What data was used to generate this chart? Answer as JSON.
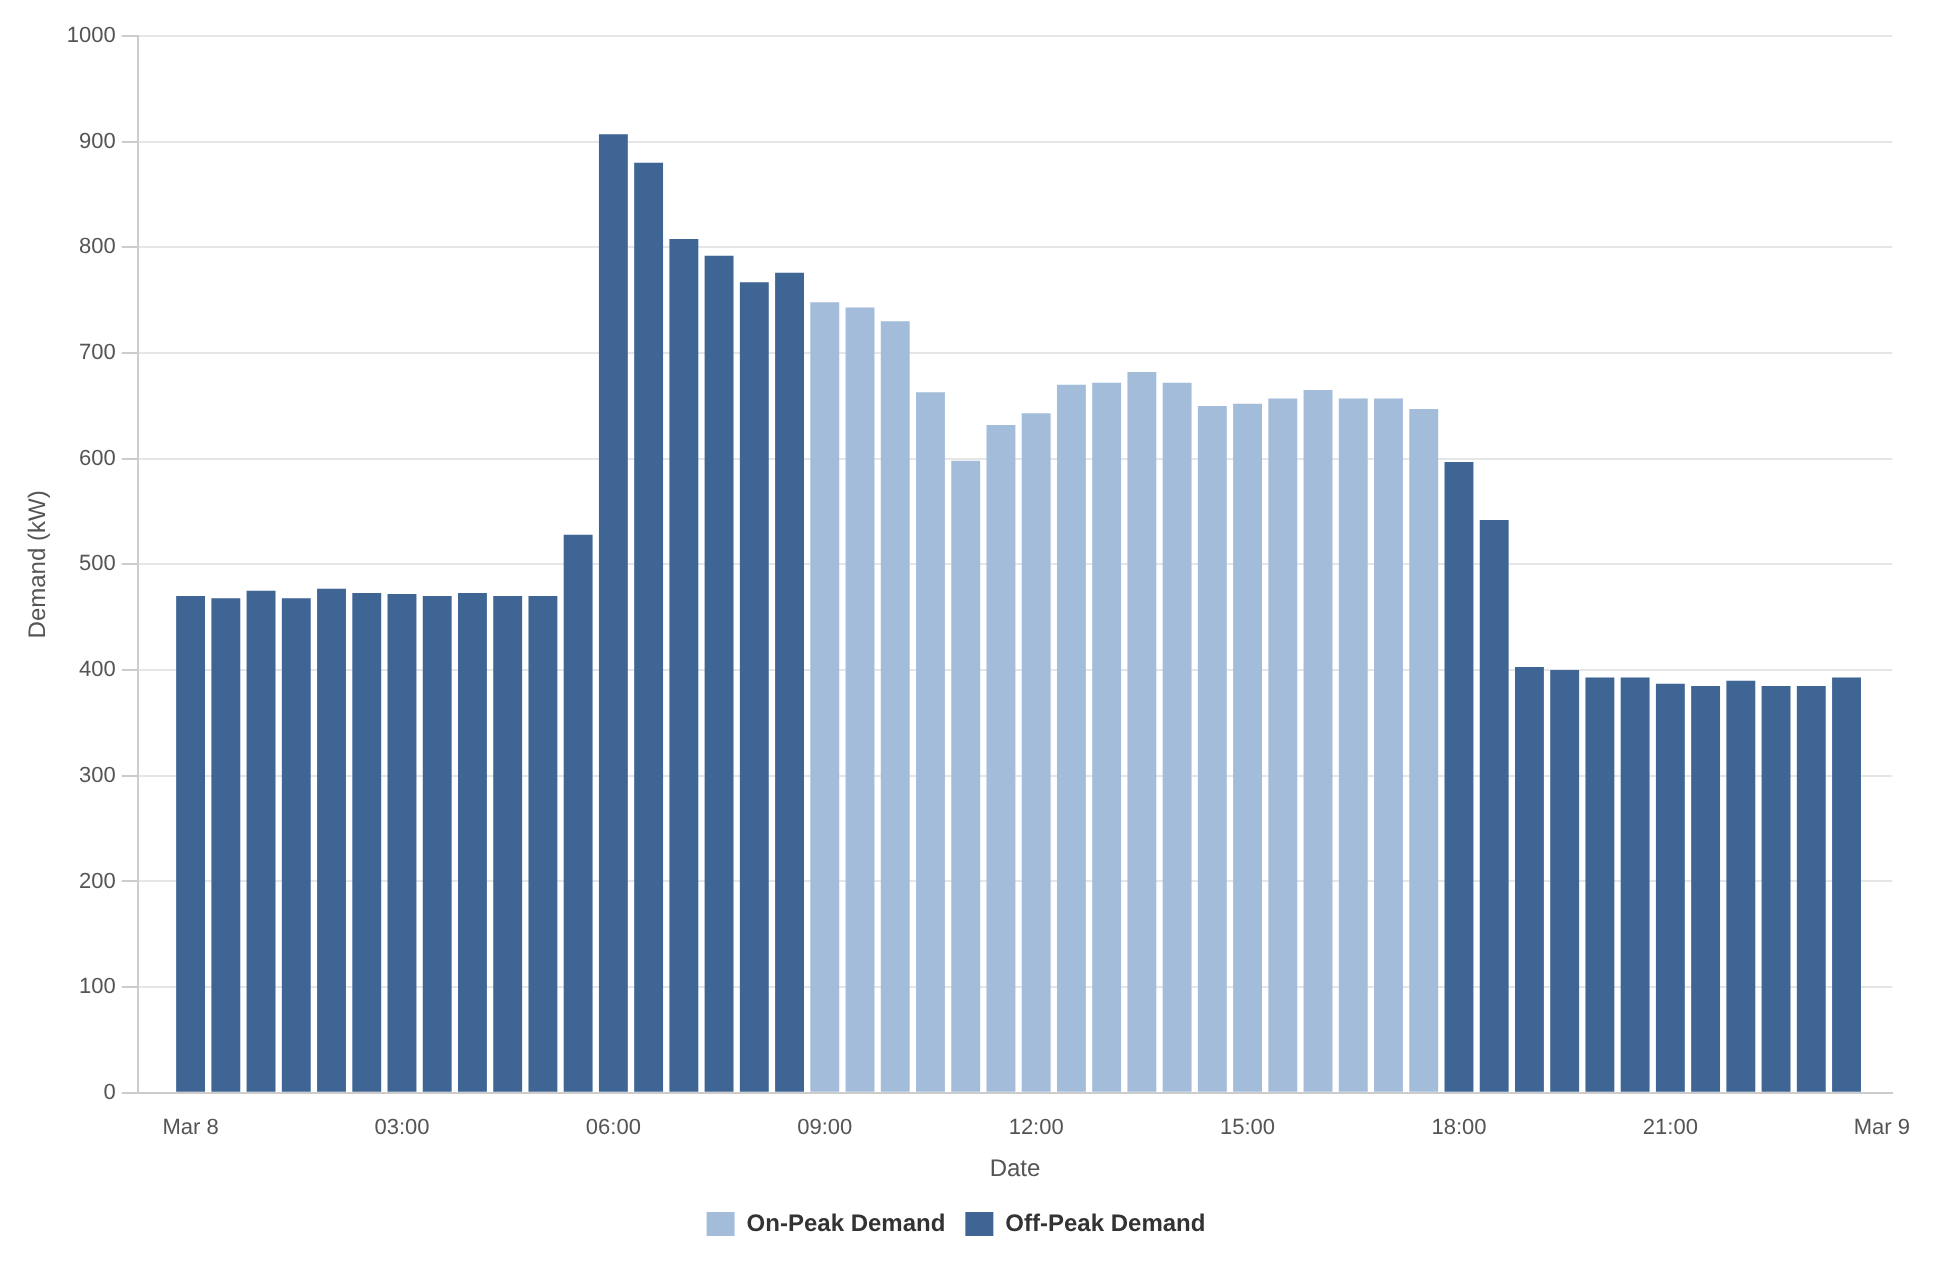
{
  "chart_data": {
    "type": "bar",
    "xlabel": "Date",
    "ylabel": "Demand (kW)",
    "x": [
      0,
      0.5,
      1,
      1.5,
      2,
      2.5,
      3,
      3.5,
      4,
      4.5,
      5,
      5.5,
      6,
      6.5,
      7,
      7.5,
      8,
      8.5,
      9,
      9.5,
      10,
      10.5,
      11,
      11.5,
      12,
      12.5,
      13,
      13.5,
      14,
      14.5,
      15,
      15.5,
      16,
      16.5,
      17,
      17.5,
      18,
      18.5,
      19,
      19.5,
      20,
      20.5,
      21,
      21.5,
      22,
      22.5,
      23,
      23.5
    ],
    "series": [
      {
        "name": "On-Peak Demand",
        "color": "#a3bcd9",
        "values": [
          null,
          null,
          null,
          null,
          null,
          null,
          null,
          null,
          null,
          null,
          null,
          null,
          null,
          null,
          null,
          null,
          null,
          null,
          748,
          743,
          730,
          663,
          598,
          632,
          643,
          670,
          672,
          682,
          672,
          650,
          652,
          657,
          665,
          657,
          657,
          647,
          null,
          null,
          null,
          null,
          null,
          null,
          null,
          null,
          null,
          null,
          null,
          null
        ]
      },
      {
        "name": "Off-Peak Demand",
        "color": "#3e6594",
        "values": [
          470,
          468,
          475,
          468,
          477,
          473,
          472,
          470,
          473,
          470,
          470,
          528,
          907,
          880,
          808,
          792,
          767,
          776,
          null,
          null,
          null,
          null,
          null,
          null,
          null,
          null,
          null,
          null,
          null,
          null,
          null,
          null,
          null,
          null,
          null,
          null,
          597,
          542,
          403,
          400,
          393,
          393,
          387,
          385,
          390,
          385,
          385,
          393
        ]
      }
    ],
    "xlim": [
      -0.75,
      24.15
    ],
    "xticks": [
      {
        "value": 0,
        "label": "Mar 8"
      },
      {
        "value": 3,
        "label": "03:00"
      },
      {
        "value": 6,
        "label": "06:00"
      },
      {
        "value": 9,
        "label": "09:00"
      },
      {
        "value": 12,
        "label": "12:00"
      },
      {
        "value": 15,
        "label": "15:00"
      },
      {
        "value": 18,
        "label": "18:00"
      },
      {
        "value": 21,
        "label": "21:00"
      },
      {
        "value": 24,
        "label": "Mar 9"
      }
    ],
    "ylim": [
      0,
      1000
    ],
    "yticks": [
      0,
      100,
      200,
      300,
      400,
      500,
      600,
      700,
      800,
      900,
      1000
    ],
    "grid": "y",
    "legend": "bottom"
  }
}
